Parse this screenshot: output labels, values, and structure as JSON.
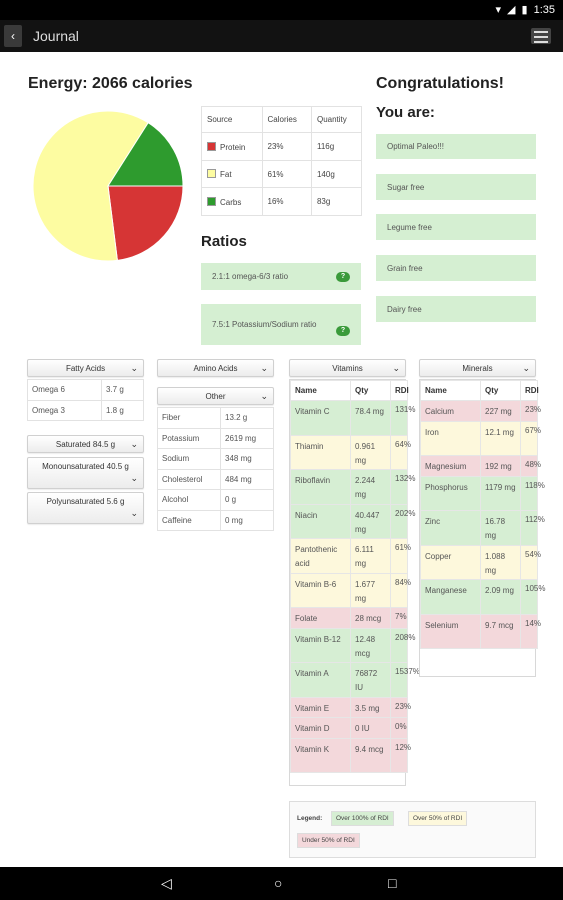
{
  "status_bar": {
    "time": "1:35"
  },
  "app": {
    "title": "Journal"
  },
  "energy": {
    "title": "Energy: 2066 calories",
    "table_headers": [
      "Source",
      "Calories",
      "Quantity"
    ],
    "rows": [
      {
        "source": "Protein",
        "calories": "23%",
        "quantity": "116g",
        "color": "#d63535",
        "pct": 23
      },
      {
        "source": "Fat",
        "calories": "61%",
        "quantity": "140g",
        "color": "#fdfca1",
        "pct": 61
      },
      {
        "source": "Carbs",
        "calories": "16%",
        "quantity": "83g",
        "color": "#2e9b2e",
        "pct": 16
      }
    ]
  },
  "ratios": {
    "title": "Ratios",
    "items": [
      {
        "text": "2.1:1 omega-6/3 ratio",
        "badge": "?"
      },
      {
        "text": "7.5:1 Potassium/Sodium ratio",
        "badge": "?"
      }
    ]
  },
  "congrats": {
    "title": "Congratulations!",
    "subtitle": "You are:",
    "items": [
      "Optimal Paleo!!!",
      "Sugar free",
      "Legume free",
      "Grain free",
      "Dairy free"
    ]
  },
  "fatty_acids": {
    "label": "Fatty Acids",
    "rows": [
      {
        "name": "Omega 6",
        "value": "3.7 g"
      },
      {
        "name": "Omega 3",
        "value": "1.8 g"
      }
    ],
    "saturated": "Saturated 84.5 g",
    "monounsaturated": "Monounsaturated 40.5 g",
    "polyunsaturated": "Polyunsaturated 5.6 g"
  },
  "amino_acids": {
    "label": "Amino Acids"
  },
  "other": {
    "label": "Other",
    "rows": [
      {
        "name": "Fiber",
        "value": "13.2 g"
      },
      {
        "name": "Potassium",
        "value": "2619 mg"
      },
      {
        "name": "Sodium",
        "value": "348 mg"
      },
      {
        "name": "Cholesterol",
        "value": "484 mg"
      },
      {
        "name": "Alcohol",
        "value": "0 g"
      },
      {
        "name": "Caffeine",
        "value": "0 mg"
      }
    ]
  },
  "vitamins": {
    "label": "Vitamins",
    "headers": [
      "Name",
      "Qty",
      "RDI"
    ],
    "rows": [
      {
        "name": "Vitamin C",
        "qty": "78.4 mg",
        "rdi": "131%",
        "status": "g"
      },
      {
        "name": "Thiamin",
        "qty": "0.961 mg",
        "rdi": "64%",
        "status": "y"
      },
      {
        "name": "Riboflavin",
        "qty": "2.244 mg",
        "rdi": "132%",
        "status": "g"
      },
      {
        "name": "Niacin",
        "qty": "40.447 mg",
        "rdi": "202%",
        "status": "g"
      },
      {
        "name": "Pantothenic acid",
        "qty": "6.111 mg",
        "rdi": "61%",
        "status": "y"
      },
      {
        "name": "Vitamin B-6",
        "qty": "1.677 mg",
        "rdi": "84%",
        "status": "y"
      },
      {
        "name": "Folate",
        "qty": "28 mcg",
        "rdi": "7%",
        "status": "r"
      },
      {
        "name": "Vitamin B-12",
        "qty": "12.48 mcg",
        "rdi": "208%",
        "status": "g"
      },
      {
        "name": "Vitamin A",
        "qty": "76872 IU",
        "rdi": "1537%",
        "status": "g"
      },
      {
        "name": "Vitamin E",
        "qty": "3.5 mg",
        "rdi": "23%",
        "status": "r"
      },
      {
        "name": "Vitamin D",
        "qty": "0 IU",
        "rdi": "0%",
        "status": "r"
      },
      {
        "name": "Vitamin K",
        "qty": "9.4 mcg",
        "rdi": "12%",
        "status": "r"
      }
    ]
  },
  "minerals": {
    "label": "Minerals",
    "headers": [
      "Name",
      "Qty",
      "RDI"
    ],
    "rows": [
      {
        "name": "Calcium",
        "qty": "227 mg",
        "rdi": "23%",
        "status": "r"
      },
      {
        "name": "Iron",
        "qty": "12.1 mg",
        "rdi": "67%",
        "status": "y"
      },
      {
        "name": "Magnesium",
        "qty": "192 mg",
        "rdi": "48%",
        "status": "r"
      },
      {
        "name": "Phosphorus",
        "qty": "1179 mg",
        "rdi": "118%",
        "status": "g"
      },
      {
        "name": "Zinc",
        "qty": "16.78 mg",
        "rdi": "112%",
        "status": "g"
      },
      {
        "name": "Copper",
        "qty": "1.088 mg",
        "rdi": "54%",
        "status": "y"
      },
      {
        "name": "Manganese",
        "qty": "2.09 mg",
        "rdi": "105%",
        "status": "g"
      },
      {
        "name": "Selenium",
        "qty": "9.7 mcg",
        "rdi": "14%",
        "status": "r"
      }
    ]
  },
  "legend": {
    "label": "Legend:",
    "over100": "Over 100% of RDI",
    "over50": "Over 50% of RDI",
    "under50": "Under 50% of RDI"
  },
  "colors": {
    "green": "#d6eed3",
    "yellow": "#fdf8dc",
    "red": "#f3d8db"
  }
}
